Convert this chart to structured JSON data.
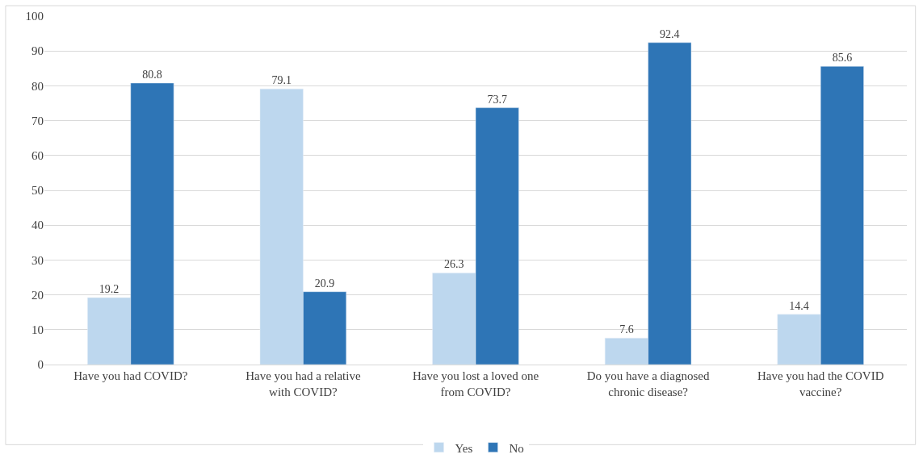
{
  "chart_data": {
    "type": "bar",
    "categories": [
      "Have you had COVID?",
      "Have you had a relative with COVID?",
      "Have you lost a loved one from COVID?",
      "Do you have a diagnosed chronic disease?",
      "Have you had the COVID vaccine?"
    ],
    "series": [
      {
        "name": "Yes",
        "color": "#bdd7ee",
        "values": [
          19.2,
          79.1,
          26.3,
          7.6,
          14.4
        ]
      },
      {
        "name": "No",
        "color": "#2e75b6",
        "values": [
          80.8,
          20.9,
          73.7,
          92.4,
          85.6
        ]
      }
    ],
    "ylim": [
      0,
      100
    ],
    "yticks": [
      0,
      10,
      20,
      30,
      40,
      50,
      60,
      70,
      80,
      90,
      100
    ],
    "grid": "y",
    "legend": "bottom",
    "data_labels": true
  }
}
